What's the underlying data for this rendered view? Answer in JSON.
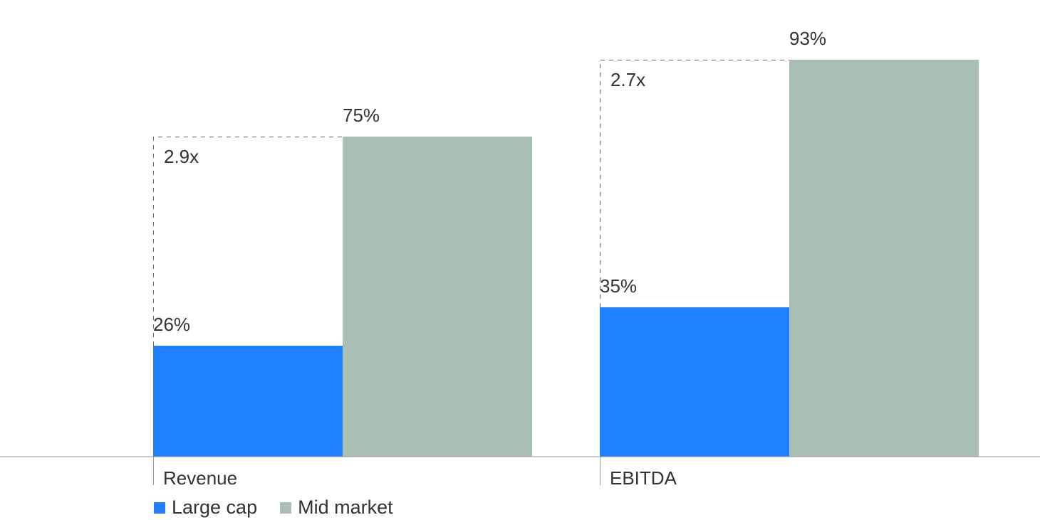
{
  "chart_data": {
    "type": "bar",
    "categories": [
      "Revenue",
      "EBITDA"
    ],
    "series": [
      {
        "name": "Large cap",
        "values": [
          26,
          35
        ],
        "labels": [
          "26%",
          "35%"
        ],
        "color": "#1f80ff"
      },
      {
        "name": "Mid market",
        "values": [
          75,
          93
        ],
        "labels": [
          "75%",
          "93%"
        ],
        "color": "#aabfb3"
      }
    ],
    "multipliers": [
      "2.9x",
      "2.7x"
    ],
    "ylim": [
      0,
      100
    ],
    "grid": false,
    "legend_position": "bottom-left",
    "title": "",
    "xlabel": "",
    "ylabel": ""
  }
}
